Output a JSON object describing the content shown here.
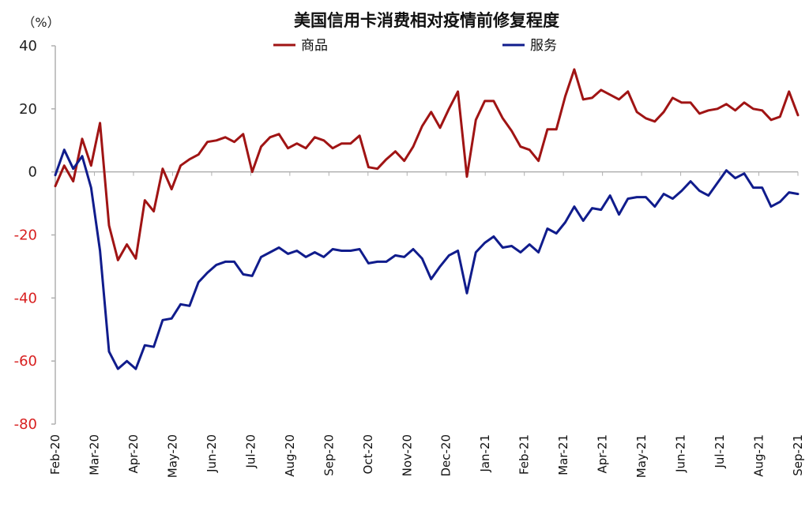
{
  "chart_data": {
    "type": "line",
    "title": "美国信用卡消费相对疫情前修复程度",
    "y_unit_label": "（%）",
    "ylim": [
      -80,
      40
    ],
    "yticks": [
      40,
      20,
      0,
      -20,
      -40,
      -60,
      -80
    ],
    "grid": false,
    "legend_position": "top",
    "x_labels": [
      "Feb-20",
      "Mar-20",
      "Apr-20",
      "May-20",
      "Jun-20",
      "Jul-20",
      "Aug-20",
      "Sep-20",
      "Oct-20",
      "Nov-20",
      "Dec-20",
      "Jan-21",
      "Feb-21",
      "Mar-21",
      "Apr-21",
      "May-21",
      "Jun-21",
      "Jul-21",
      "Aug-21",
      "Sep-21"
    ],
    "colors": {
      "goods": "#a01414",
      "services": "#101c8c",
      "axis": "#b0b0b0",
      "positive_tick": "#222222",
      "negative_tick": "#d81f1f"
    },
    "series": [
      {
        "name": "商品",
        "color": "#a01414",
        "values": [
          -4.5,
          2,
          -3,
          10.5,
          2,
          15.5,
          -17,
          -28,
          -23,
          -27.5,
          -9,
          -12.5,
          1,
          -5.5,
          2,
          4,
          5.5,
          9.5,
          10,
          11,
          9.5,
          12,
          0,
          8,
          11,
          12,
          7.5,
          9,
          7.5,
          11,
          10,
          7.5,
          9,
          9,
          11.5,
          1.5,
          1,
          4,
          6.5,
          3.5,
          8,
          14.5,
          19,
          14,
          20,
          25.5,
          -1.5,
          16.5,
          22.5,
          22.5,
          17,
          13,
          8,
          7,
          3.5,
          13.5,
          13.5,
          24,
          32.5,
          23,
          23.5,
          26,
          24.5,
          23,
          25.5,
          19,
          17,
          16,
          19,
          23.5,
          22,
          22,
          18.5,
          19.5,
          20,
          21.5,
          19.5,
          22,
          20,
          19.5,
          16.5,
          17.5,
          25.5,
          18
        ]
      },
      {
        "name": "服务",
        "color": "#101c8c",
        "values": [
          -1,
          7,
          1,
          5,
          -5,
          -25,
          -57,
          -62.5,
          -60,
          -62.5,
          -55,
          -55.5,
          -47,
          -46.5,
          -42,
          -42.5,
          -35,
          -32,
          -29.5,
          -28.5,
          -28.5,
          -32.5,
          -33,
          -27,
          -25.5,
          -24,
          -26,
          -25,
          -27,
          -25.5,
          -27,
          -24.5,
          -25,
          -25,
          -24.5,
          -29,
          -28.5,
          -28.5,
          -26.5,
          -27,
          -24.5,
          -27.5,
          -34,
          -30,
          -26.5,
          -25,
          -38.5,
          -25.5,
          -22.5,
          -20.5,
          -24,
          -23.5,
          -25.5,
          -23,
          -25.5,
          -18,
          -19.5,
          -16,
          -11,
          -15.5,
          -11.5,
          -12,
          -7.5,
          -13.5,
          -8.5,
          -8,
          -8,
          -11,
          -7,
          -8.5,
          -6,
          -3,
          -6,
          -7.5,
          -3.5,
          0.5,
          -2,
          -0.5,
          -5,
          -5,
          -11,
          -9.5,
          -6.5,
          -7
        ]
      }
    ]
  }
}
